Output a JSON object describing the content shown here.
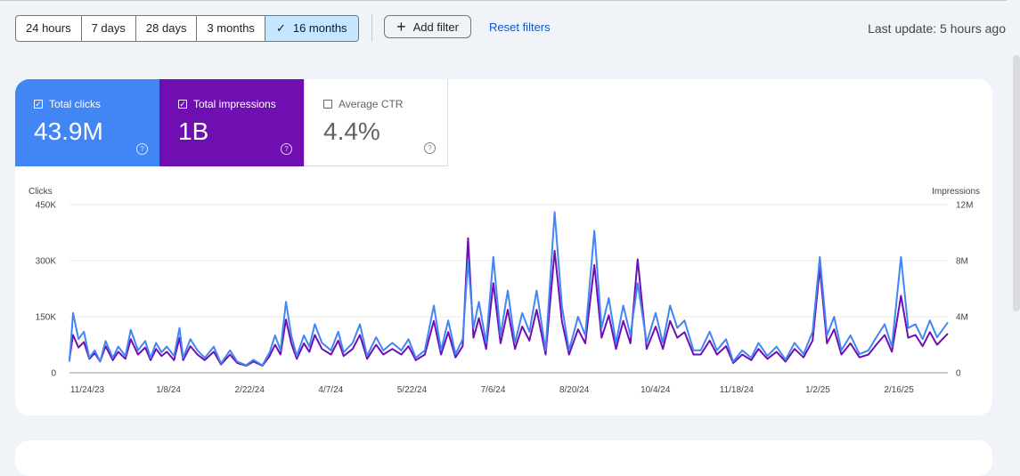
{
  "date_range": {
    "options": [
      "24 hours",
      "7 days",
      "28 days",
      "3 months",
      "16 months"
    ],
    "selected": "16 months"
  },
  "toolbar": {
    "add_filter_label": "Add filter",
    "reset_filters_label": "Reset filters",
    "last_update": "Last update: 5 hours ago"
  },
  "metrics": {
    "clicks": {
      "label": "Total clicks",
      "value": "43.9M",
      "checked": true,
      "color": "#4285f4"
    },
    "impressions": {
      "label": "Total impressions",
      "value": "1B",
      "checked": true,
      "color": "#6f0fb2"
    },
    "ctr": {
      "label": "Average CTR",
      "value": "4.4%",
      "checked": false
    }
  },
  "chart_data": {
    "type": "line",
    "y_left_title": "Clicks",
    "y_right_title": "Impressions",
    "y_left_ticks": [
      "0",
      "150K",
      "300K",
      "450K"
    ],
    "y_right_ticks": [
      "0",
      "4M",
      "8M",
      "12M"
    ],
    "y_left_range": [
      0,
      450000
    ],
    "y_right_range": [
      0,
      12000000
    ],
    "x_ticks": [
      "11/24/23",
      "1/8/24",
      "2/22/24",
      "4/7/24",
      "5/22/24",
      "7/6/24",
      "8/20/24",
      "10/4/24",
      "11/18/24",
      "1/2/25",
      "2/16/25"
    ],
    "x_start": "2023-11-24",
    "x_end": "2025-03-25",
    "grid": true,
    "series": [
      {
        "name": "Clicks",
        "axis": "left",
        "color": "#4285f4",
        "points": [
          [
            "2023-11-24",
            30000
          ],
          [
            "2023-11-26",
            160000
          ],
          [
            "2023-11-29",
            90000
          ],
          [
            "2023-12-02",
            110000
          ],
          [
            "2023-12-05",
            40000
          ],
          [
            "2023-12-08",
            60000
          ],
          [
            "2023-12-11",
            30000
          ],
          [
            "2023-12-14",
            85000
          ],
          [
            "2023-12-18",
            40000
          ],
          [
            "2023-12-21",
            70000
          ],
          [
            "2023-12-25",
            45000
          ],
          [
            "2023-12-28",
            115000
          ],
          [
            "2024-01-01",
            60000
          ],
          [
            "2024-01-05",
            85000
          ],
          [
            "2024-01-08",
            40000
          ],
          [
            "2024-01-11",
            80000
          ],
          [
            "2024-01-14",
            55000
          ],
          [
            "2024-01-17",
            70000
          ],
          [
            "2024-01-21",
            45000
          ],
          [
            "2024-01-24",
            120000
          ],
          [
            "2024-01-26",
            40000
          ],
          [
            "2024-01-30",
            90000
          ],
          [
            "2024-02-03",
            60000
          ],
          [
            "2024-02-07",
            40000
          ],
          [
            "2024-02-12",
            70000
          ],
          [
            "2024-02-16",
            25000
          ],
          [
            "2024-02-21",
            60000
          ],
          [
            "2024-02-25",
            30000
          ],
          [
            "2024-03-01",
            20000
          ],
          [
            "2024-03-05",
            35000
          ],
          [
            "2024-03-10",
            20000
          ],
          [
            "2024-03-14",
            55000
          ],
          [
            "2024-03-17",
            100000
          ],
          [
            "2024-03-20",
            60000
          ],
          [
            "2024-03-23",
            190000
          ],
          [
            "2024-03-26",
            100000
          ],
          [
            "2024-03-29",
            45000
          ],
          [
            "2024-04-02",
            100000
          ],
          [
            "2024-04-05",
            70000
          ],
          [
            "2024-04-08",
            130000
          ],
          [
            "2024-04-12",
            80000
          ],
          [
            "2024-04-17",
            60000
          ],
          [
            "2024-04-21",
            110000
          ],
          [
            "2024-04-24",
            55000
          ],
          [
            "2024-04-29",
            80000
          ],
          [
            "2024-05-03",
            130000
          ],
          [
            "2024-05-07",
            45000
          ],
          [
            "2024-05-12",
            95000
          ],
          [
            "2024-05-16",
            60000
          ],
          [
            "2024-05-21",
            80000
          ],
          [
            "2024-05-26",
            60000
          ],
          [
            "2024-05-30",
            90000
          ],
          [
            "2024-06-03",
            40000
          ],
          [
            "2024-06-08",
            60000
          ],
          [
            "2024-06-13",
            180000
          ],
          [
            "2024-06-17",
            60000
          ],
          [
            "2024-06-21",
            140000
          ],
          [
            "2024-06-25",
            50000
          ],
          [
            "2024-06-29",
            90000
          ],
          [
            "2024-07-02",
            300000
          ],
          [
            "2024-07-05",
            120000
          ],
          [
            "2024-07-08",
            190000
          ],
          [
            "2024-07-12",
            80000
          ],
          [
            "2024-07-16",
            310000
          ],
          [
            "2024-07-20",
            100000
          ],
          [
            "2024-07-24",
            220000
          ],
          [
            "2024-07-28",
            80000
          ],
          [
            "2024-08-01",
            160000
          ],
          [
            "2024-08-05",
            110000
          ],
          [
            "2024-08-09",
            220000
          ],
          [
            "2024-08-14",
            60000
          ],
          [
            "2024-08-19",
            430000
          ],
          [
            "2024-08-23",
            180000
          ],
          [
            "2024-08-27",
            60000
          ],
          [
            "2024-09-01",
            150000
          ],
          [
            "2024-09-05",
            100000
          ],
          [
            "2024-09-10",
            380000
          ],
          [
            "2024-09-14",
            120000
          ],
          [
            "2024-09-18",
            200000
          ],
          [
            "2024-09-22",
            80000
          ],
          [
            "2024-09-26",
            180000
          ],
          [
            "2024-09-30",
            100000
          ],
          [
            "2024-10-04",
            240000
          ],
          [
            "2024-10-09",
            80000
          ],
          [
            "2024-10-14",
            160000
          ],
          [
            "2024-10-18",
            80000
          ],
          [
            "2024-10-22",
            180000
          ],
          [
            "2024-10-26",
            120000
          ],
          [
            "2024-10-30",
            140000
          ],
          [
            "2024-11-04",
            60000
          ],
          [
            "2024-11-08",
            60000
          ],
          [
            "2024-11-13",
            110000
          ],
          [
            "2024-11-17",
            60000
          ],
          [
            "2024-11-22",
            90000
          ],
          [
            "2024-11-26",
            30000
          ],
          [
            "2024-12-01",
            60000
          ],
          [
            "2024-12-06",
            40000
          ],
          [
            "2024-12-10",
            80000
          ],
          [
            "2024-12-15",
            45000
          ],
          [
            "2024-12-20",
            70000
          ],
          [
            "2024-12-25",
            35000
          ],
          [
            "2024-12-30",
            80000
          ],
          [
            "2025-01-04",
            50000
          ],
          [
            "2025-01-09",
            110000
          ],
          [
            "2025-01-13",
            310000
          ],
          [
            "2025-01-17",
            100000
          ],
          [
            "2025-01-21",
            150000
          ],
          [
            "2025-01-25",
            60000
          ],
          [
            "2025-01-30",
            100000
          ],
          [
            "2025-02-04",
            50000
          ],
          [
            "2025-02-09",
            60000
          ],
          [
            "2025-02-14",
            100000
          ],
          [
            "2025-02-18",
            130000
          ],
          [
            "2025-02-22",
            70000
          ],
          [
            "2025-02-27",
            310000
          ],
          [
            "2025-03-03",
            120000
          ],
          [
            "2025-03-07",
            130000
          ],
          [
            "2025-03-11",
            90000
          ],
          [
            "2025-03-15",
            140000
          ],
          [
            "2025-03-19",
            95000
          ],
          [
            "2025-03-25",
            135000
          ]
        ]
      },
      {
        "name": "Impressions",
        "axis": "right",
        "color": "#6f0fb2",
        "points": [
          [
            "2023-11-24",
            1000000
          ],
          [
            "2023-11-26",
            2700000
          ],
          [
            "2023-11-29",
            1800000
          ],
          [
            "2023-12-02",
            2200000
          ],
          [
            "2023-12-05",
            1000000
          ],
          [
            "2023-12-08",
            1400000
          ],
          [
            "2023-12-11",
            800000
          ],
          [
            "2023-12-14",
            1900000
          ],
          [
            "2023-12-18",
            900000
          ],
          [
            "2023-12-21",
            1500000
          ],
          [
            "2023-12-25",
            1000000
          ],
          [
            "2023-12-28",
            2400000
          ],
          [
            "2024-01-01",
            1300000
          ],
          [
            "2024-01-05",
            1800000
          ],
          [
            "2024-01-08",
            900000
          ],
          [
            "2024-01-11",
            1700000
          ],
          [
            "2024-01-14",
            1200000
          ],
          [
            "2024-01-17",
            1500000
          ],
          [
            "2024-01-21",
            900000
          ],
          [
            "2024-01-24",
            2500000
          ],
          [
            "2024-01-26",
            900000
          ],
          [
            "2024-01-30",
            1900000
          ],
          [
            "2024-02-03",
            1300000
          ],
          [
            "2024-02-07",
            900000
          ],
          [
            "2024-02-12",
            1500000
          ],
          [
            "2024-02-16",
            600000
          ],
          [
            "2024-02-21",
            1300000
          ],
          [
            "2024-02-25",
            700000
          ],
          [
            "2024-03-01",
            500000
          ],
          [
            "2024-03-05",
            800000
          ],
          [
            "2024-03-10",
            500000
          ],
          [
            "2024-03-14",
            1200000
          ],
          [
            "2024-03-17",
            2000000
          ],
          [
            "2024-03-20",
            1300000
          ],
          [
            "2024-03-23",
            3800000
          ],
          [
            "2024-03-26",
            2100000
          ],
          [
            "2024-03-29",
            1000000
          ],
          [
            "2024-04-02",
            2100000
          ],
          [
            "2024-04-05",
            1500000
          ],
          [
            "2024-04-08",
            2700000
          ],
          [
            "2024-04-12",
            1700000
          ],
          [
            "2024-04-17",
            1300000
          ],
          [
            "2024-04-21",
            2300000
          ],
          [
            "2024-04-24",
            1200000
          ],
          [
            "2024-04-29",
            1700000
          ],
          [
            "2024-05-03",
            2700000
          ],
          [
            "2024-05-07",
            1000000
          ],
          [
            "2024-05-12",
            2000000
          ],
          [
            "2024-05-16",
            1300000
          ],
          [
            "2024-05-21",
            1700000
          ],
          [
            "2024-05-26",
            1300000
          ],
          [
            "2024-05-30",
            1900000
          ],
          [
            "2024-06-03",
            900000
          ],
          [
            "2024-06-08",
            1300000
          ],
          [
            "2024-06-13",
            3700000
          ],
          [
            "2024-06-17",
            1300000
          ],
          [
            "2024-06-21",
            2900000
          ],
          [
            "2024-06-25",
            1100000
          ],
          [
            "2024-06-29",
            1900000
          ],
          [
            "2024-07-02",
            9600000
          ],
          [
            "2024-07-05",
            2500000
          ],
          [
            "2024-07-08",
            3900000
          ],
          [
            "2024-07-12",
            1700000
          ],
          [
            "2024-07-16",
            6400000
          ],
          [
            "2024-07-20",
            2100000
          ],
          [
            "2024-07-24",
            4500000
          ],
          [
            "2024-07-28",
            1700000
          ],
          [
            "2024-08-01",
            3300000
          ],
          [
            "2024-08-05",
            2300000
          ],
          [
            "2024-08-09",
            4500000
          ],
          [
            "2024-08-14",
            1300000
          ],
          [
            "2024-08-19",
            8700000
          ],
          [
            "2024-08-23",
            3700000
          ],
          [
            "2024-08-27",
            1300000
          ],
          [
            "2024-09-01",
            3100000
          ],
          [
            "2024-09-05",
            2100000
          ],
          [
            "2024-09-10",
            7700000
          ],
          [
            "2024-09-14",
            2500000
          ],
          [
            "2024-09-18",
            4100000
          ],
          [
            "2024-09-22",
            1700000
          ],
          [
            "2024-09-26",
            3700000
          ],
          [
            "2024-09-30",
            2100000
          ],
          [
            "2024-10-04",
            8100000
          ],
          [
            "2024-10-09",
            1700000
          ],
          [
            "2024-10-14",
            3300000
          ],
          [
            "2024-10-18",
            1700000
          ],
          [
            "2024-10-22",
            3700000
          ],
          [
            "2024-10-26",
            2500000
          ],
          [
            "2024-10-30",
            2900000
          ],
          [
            "2024-11-04",
            1300000
          ],
          [
            "2024-11-08",
            1300000
          ],
          [
            "2024-11-13",
            2300000
          ],
          [
            "2024-11-17",
            1300000
          ],
          [
            "2024-11-22",
            1900000
          ],
          [
            "2024-11-26",
            700000
          ],
          [
            "2024-12-01",
            1300000
          ],
          [
            "2024-12-06",
            900000
          ],
          [
            "2024-12-10",
            1700000
          ],
          [
            "2024-12-15",
            1000000
          ],
          [
            "2024-12-20",
            1500000
          ],
          [
            "2024-12-25",
            800000
          ],
          [
            "2024-12-30",
            1700000
          ],
          [
            "2025-01-04",
            1100000
          ],
          [
            "2025-01-09",
            2300000
          ],
          [
            "2025-01-13",
            7500000
          ],
          [
            "2025-01-17",
            2100000
          ],
          [
            "2025-01-21",
            3100000
          ],
          [
            "2025-01-25",
            1300000
          ],
          [
            "2025-01-30",
            2100000
          ],
          [
            "2025-02-04",
            1100000
          ],
          [
            "2025-02-09",
            1300000
          ],
          [
            "2025-02-14",
            2100000
          ],
          [
            "2025-02-18",
            2700000
          ],
          [
            "2025-02-22",
            1500000
          ],
          [
            "2025-02-27",
            5500000
          ],
          [
            "2025-03-03",
            2500000
          ],
          [
            "2025-03-07",
            2700000
          ],
          [
            "2025-03-11",
            1900000
          ],
          [
            "2025-03-15",
            2900000
          ],
          [
            "2025-03-19",
            2000000
          ],
          [
            "2025-03-25",
            2800000
          ]
        ]
      }
    ]
  }
}
